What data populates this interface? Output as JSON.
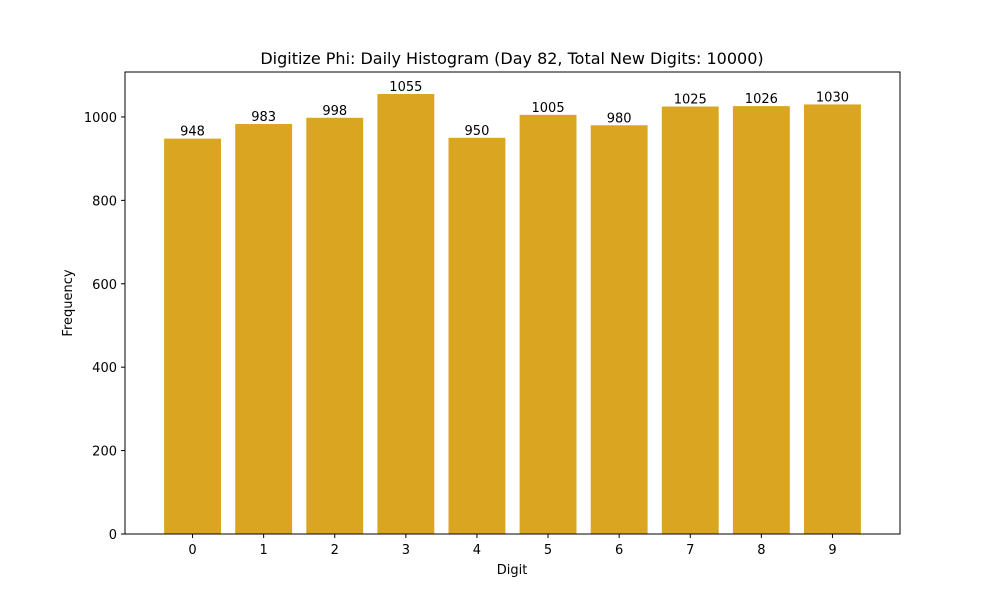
{
  "chart_data": {
    "type": "bar",
    "title": "Digitize Phi: Daily Histogram (Day 82, Total New Digits: 10000)",
    "xlabel": "Digit",
    "ylabel": "Frequency",
    "categories": [
      "0",
      "1",
      "2",
      "3",
      "4",
      "5",
      "6",
      "7",
      "8",
      "9"
    ],
    "values": [
      948,
      983,
      998,
      1055,
      950,
      1005,
      980,
      1025,
      1026,
      1030
    ],
    "data_labels": [
      "948",
      "983",
      "998",
      "1055",
      "950",
      "1005",
      "980",
      "1025",
      "1026",
      "1030"
    ],
    "ylim": [
      0,
      1107.75
    ],
    "yticks": [
      0,
      200,
      400,
      600,
      800,
      1000
    ],
    "ytick_labels": [
      "0",
      "200",
      "400",
      "600",
      "800",
      "1000"
    ],
    "bar_color": "#daa520",
    "grid": false,
    "legend": "none"
  }
}
